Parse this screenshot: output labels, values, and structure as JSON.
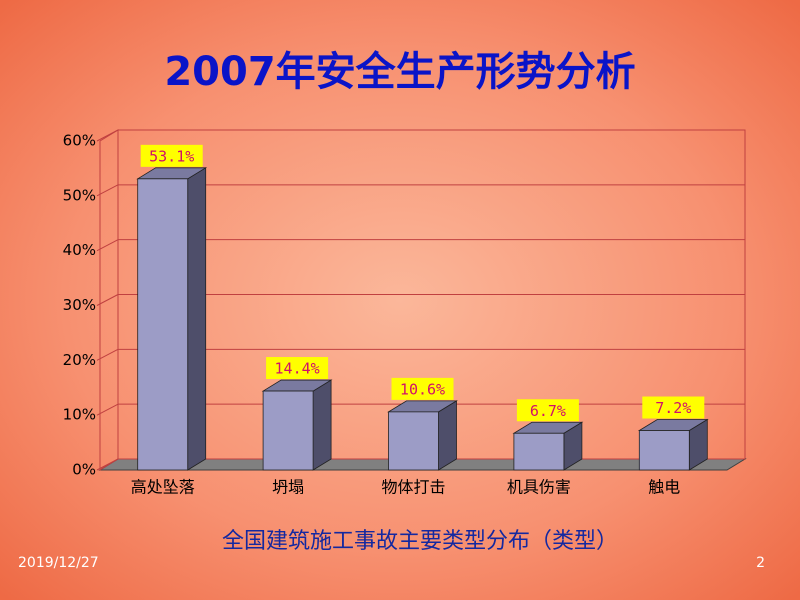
{
  "chart_data": {
    "type": "bar3d",
    "title": "2007年安全生产形势分析",
    "subtitle": "全国建筑施工事故主要类型分布（类型）",
    "categories": [
      "高处坠落",
      "坍塌",
      "物体打击",
      "机具伤害",
      "触电"
    ],
    "values": [
      53.1,
      14.4,
      10.6,
      6.7,
      7.2
    ],
    "value_labels": [
      "53.1%",
      "14.4%",
      "10.6%",
      "6.7%",
      "7.2%"
    ],
    "color": "#9c9cc6",
    "ylim": [
      0,
      60
    ],
    "yticks": [
      {
        "value": 0,
        "label": "0%"
      },
      {
        "value": 10,
        "label": "10%"
      },
      {
        "value": 20,
        "label": "20%"
      },
      {
        "value": 30,
        "label": "30%"
      },
      {
        "value": 40,
        "label": "40%"
      },
      {
        "value": 50,
        "label": "50%"
      },
      {
        "value": 60,
        "label": "60%"
      }
    ],
    "grid": true
  },
  "footer": {
    "date": "2019/12/27",
    "page": "2"
  }
}
